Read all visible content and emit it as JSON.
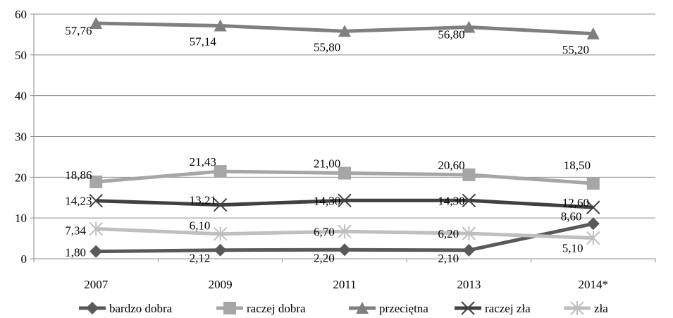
{
  "chart_data": {
    "type": "line",
    "categories": [
      "2007",
      "2009",
      "2011",
      "2013",
      "2014*"
    ],
    "ylim": [
      0,
      60
    ],
    "yticks": [
      "0",
      "10",
      "20",
      "30",
      "40",
      "50",
      "60"
    ],
    "grid": true,
    "legend_position": "bottom",
    "series": [
      {
        "name": "bardzo dobra",
        "color": "#595959",
        "marker": "diamond",
        "values": [
          1.8,
          2.12,
          2.2,
          2.1,
          8.6
        ],
        "labels": [
          "1,80",
          "2,12",
          "2,20",
          "2,10",
          "8,60"
        ]
      },
      {
        "name": "raczej dobra",
        "color": "#a6a6a6",
        "marker": "square",
        "values": [
          18.86,
          21.43,
          21.0,
          20.6,
          18.5
        ],
        "labels": [
          "18,86",
          "21,43",
          "21,00",
          "20,60",
          "18,50"
        ]
      },
      {
        "name": "przeciętna",
        "color": "#7f7f7f",
        "marker": "triangle",
        "values": [
          57.76,
          57.14,
          55.8,
          56.8,
          55.2
        ],
        "labels": [
          "57,76",
          "57,14",
          "55,80",
          "56,80",
          "55,20"
        ]
      },
      {
        "name": "raczej zła",
        "color": "#404040",
        "marker": "x",
        "values": [
          14.23,
          13.21,
          14.3,
          14.3,
          12.6
        ],
        "labels": [
          "14,23",
          "13,21",
          "14,30",
          "14,30",
          "12,60"
        ]
      },
      {
        "name": "zła",
        "color": "#bfbfbf",
        "marker": "star",
        "values": [
          7.34,
          6.1,
          6.7,
          6.2,
          5.1
        ],
        "labels": [
          "7,34",
          "6,10",
          "6,70",
          "6,20",
          "5,10"
        ]
      }
    ]
  }
}
